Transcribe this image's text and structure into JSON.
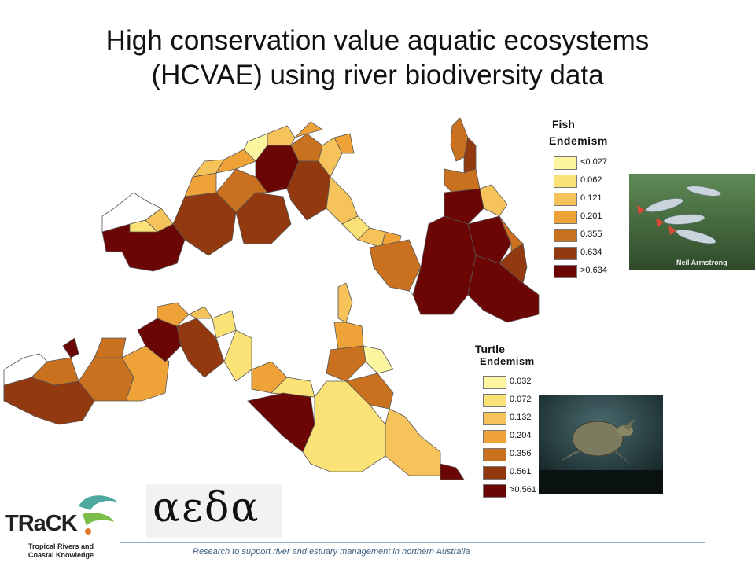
{
  "title_lines": [
    "High conservation value aquatic ecosystems",
    "(HCVAE) using river biodiversity data"
  ],
  "fish_legend": {
    "title": "Fish",
    "subtitle": "Endemism",
    "items": [
      {
        "label": "<0.027",
        "color": "#fdf6a0"
      },
      {
        "label": "0.062",
        "color": "#fbe277"
      },
      {
        "label": "0.121",
        "color": "#f6c25a"
      },
      {
        "label": "0.201",
        "color": "#eea238"
      },
      {
        "label": "0.355",
        "color": "#c9711f"
      },
      {
        "label": "0.634",
        "color": "#93390f"
      },
      {
        "label": ">0.634",
        "color": "#6b0605"
      }
    ]
  },
  "turtle_legend": {
    "title": "Turtle",
    "subtitle": "Endemism",
    "items": [
      {
        "label": "0.032",
        "color": "#fdf6a0"
      },
      {
        "label": "0.072",
        "color": "#fbe277"
      },
      {
        "label": "0.132",
        "color": "#f6c25a"
      },
      {
        "label": "0.204",
        "color": "#eea238"
      },
      {
        "label": "0.356",
        "color": "#c9711f"
      },
      {
        "label": "0.561",
        "color": "#93390f"
      },
      {
        "label": ">0.561",
        "color": "#6b0605"
      }
    ]
  },
  "photo_credit": "Neil Armstrong",
  "footer_text": "Research to support river and estuary management in northern Australia",
  "logos": {
    "track_word": "TRaCK",
    "track_sub_line1": "Tropical Rivers and",
    "track_sub_line2": "Coastal Knowledge",
    "aeda_word": "αεδα"
  }
}
